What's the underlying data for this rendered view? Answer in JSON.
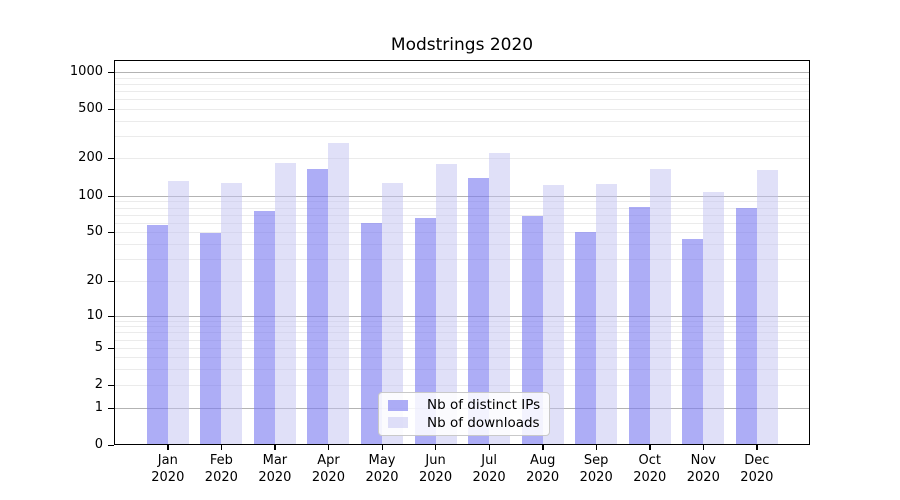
{
  "chart_data": {
    "type": "bar",
    "title": "Modstrings 2020",
    "categories": [
      "Jan 2020",
      "Feb 2020",
      "Mar 2020",
      "Apr 2020",
      "May 2020",
      "Jun 2020",
      "Jul 2020",
      "Aug 2020",
      "Sep 2020",
      "Oct 2020",
      "Nov 2020",
      "Dec 2020"
    ],
    "series": [
      {
        "name": "Nb of distinct IPs",
        "color": "rgba(122,122,240,0.62)",
        "values": [
          57,
          49,
          75,
          165,
          60,
          66,
          140,
          68,
          50,
          81,
          44,
          80
        ]
      },
      {
        "name": "Nb of downloads",
        "color": "rgba(193,193,242,0.5)",
        "values": [
          132,
          127,
          183,
          265,
          126,
          178,
          220,
          122,
          124,
          165,
          107,
          162
        ]
      }
    ],
    "yscale": "symlog",
    "ylim": [
      0,
      1250
    ],
    "yticks": [
      0,
      1,
      2,
      5,
      10,
      20,
      50,
      100,
      200,
      500,
      1000
    ],
    "xlabel": "",
    "ylabel": "",
    "grid": true,
    "legend_position": "lower center"
  },
  "colors": {
    "background": "#ffffff",
    "axis": "#000000",
    "major_grid": "#b3b3b3",
    "minor_grid": "#ebebeb",
    "legend_border": "#c9c9c9"
  }
}
